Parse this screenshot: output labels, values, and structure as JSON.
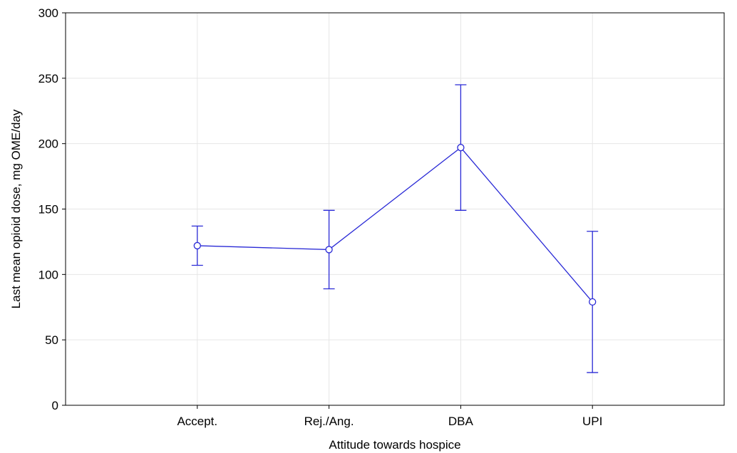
{
  "chart_data": {
    "type": "line",
    "title": "",
    "xlabel": "Attitude towards hospice",
    "ylabel": "Last mean opioid dose, mg OME/day",
    "categories": [
      "Accept.",
      "Rej./Ang.",
      "DBA",
      "UPI"
    ],
    "series": [
      {
        "values": [
          122,
          119,
          197,
          79
        ],
        "error_low": [
          107,
          89,
          149,
          25
        ],
        "error_high": [
          137,
          149,
          245,
          133
        ],
        "color": "#2a2ad6",
        "marker": "open-circle"
      }
    ],
    "ylim": [
      0,
      300
    ],
    "yticks": [
      0,
      50,
      100,
      150,
      200,
      250,
      300
    ],
    "yticks_labels": [
      "0",
      "50",
      "100",
      "150",
      "200",
      "250",
      "300"
    ],
    "grid": true,
    "legend": "none"
  }
}
